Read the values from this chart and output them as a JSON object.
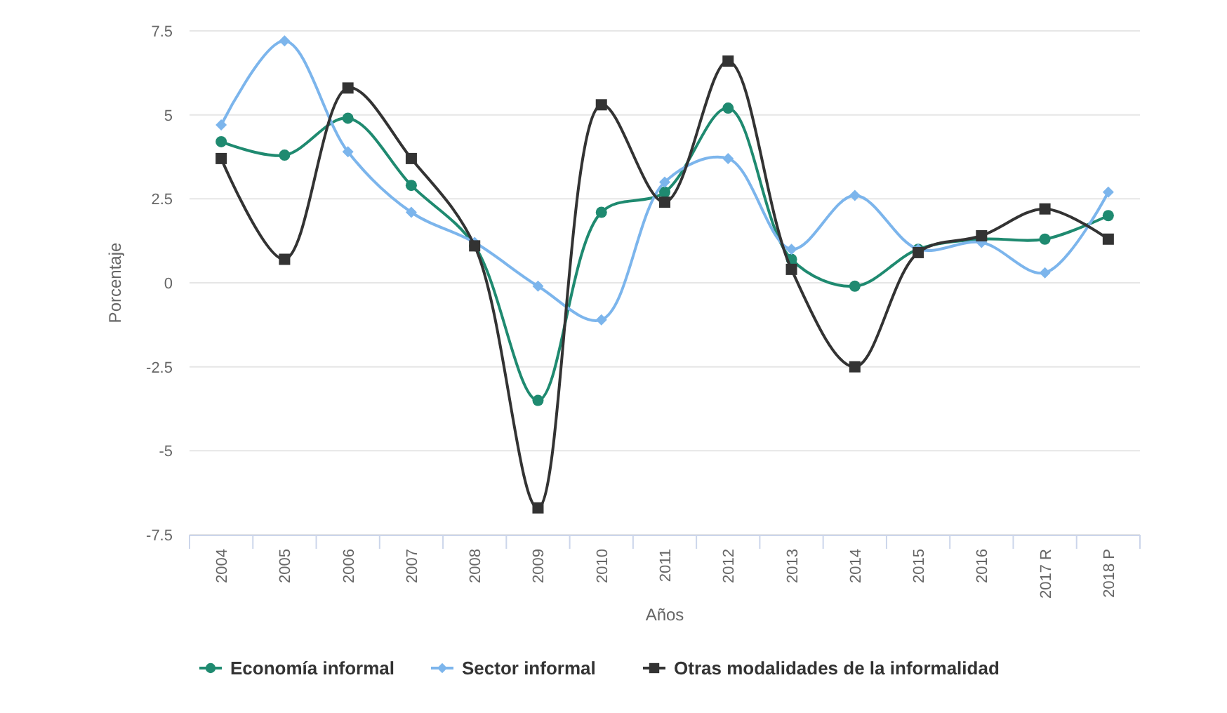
{
  "chart_data": {
    "type": "line",
    "xlabel": "Años",
    "ylabel": "Porcentaje",
    "categories": [
      "2004",
      "2005",
      "2006",
      "2007",
      "2008",
      "2009",
      "2010",
      "2011",
      "2012",
      "2013",
      "2014",
      "2015",
      "2016",
      "2017 R",
      "2018 P"
    ],
    "series": [
      {
        "name": "Economía informal",
        "color": "#1f8a70",
        "marker": "circle",
        "values": [
          4.2,
          3.8,
          4.9,
          2.9,
          1.1,
          -3.5,
          2.1,
          2.7,
          5.2,
          0.7,
          -0.1,
          1.0,
          1.3,
          1.3,
          2.0
        ]
      },
      {
        "name": "Sector informal",
        "color": "#7cb5ec",
        "marker": "diamond",
        "values": [
          4.7,
          7.2,
          3.9,
          2.1,
          1.2,
          -0.1,
          -1.1,
          3.0,
          3.7,
          1.0,
          2.6,
          1.0,
          1.2,
          0.3,
          2.7
        ]
      },
      {
        "name": "Otras modalidades de la informalidad",
        "color": "#333333",
        "marker": "square",
        "values": [
          3.7,
          0.7,
          5.8,
          3.7,
          1.1,
          -6.7,
          5.3,
          2.4,
          6.6,
          0.4,
          -2.5,
          0.9,
          1.4,
          2.2,
          1.3
        ]
      }
    ],
    "ylim": [
      -7.5,
      7.5
    ],
    "yticks": [
      -7.5,
      -5,
      -2.5,
      0,
      2.5,
      5,
      7.5
    ],
    "grid": "y",
    "legend": "bottom"
  }
}
